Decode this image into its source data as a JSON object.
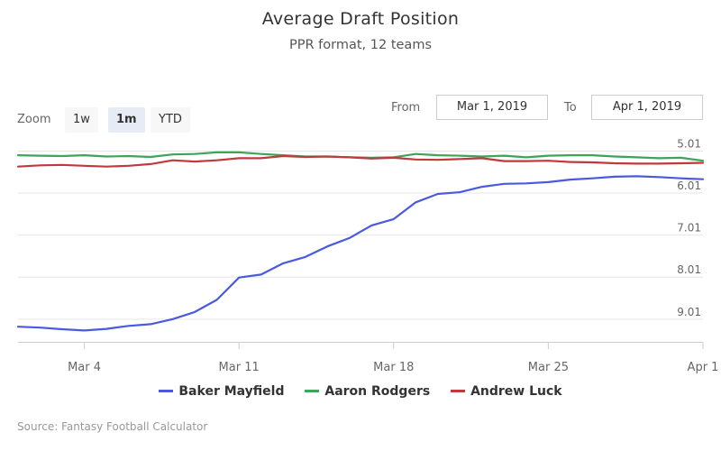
{
  "chart_data": {
    "type": "line",
    "title": "Average Draft Position",
    "subtitle": "PPR format, 12 teams",
    "xlabel": "",
    "ylabel": "",
    "x": [
      "2019-03-01",
      "2019-03-02",
      "2019-03-03",
      "2019-03-04",
      "2019-03-05",
      "2019-03-06",
      "2019-03-07",
      "2019-03-08",
      "2019-03-09",
      "2019-03-10",
      "2019-03-11",
      "2019-03-12",
      "2019-03-13",
      "2019-03-14",
      "2019-03-15",
      "2019-03-16",
      "2019-03-17",
      "2019-03-18",
      "2019-03-19",
      "2019-03-20",
      "2019-03-21",
      "2019-03-22",
      "2019-03-23",
      "2019-03-24",
      "2019-03-25",
      "2019-03-26",
      "2019-03-27",
      "2019-03-28",
      "2019-03-29",
      "2019-03-30",
      "2019-03-31",
      "2019-04-01"
    ],
    "x_tick_labels": [
      "Mar 4",
      "Mar 11",
      "Mar 18",
      "Mar 25",
      "Apr 1"
    ],
    "x_tick_indices": [
      3,
      10,
      17,
      24,
      31
    ],
    "y_tick_labels": [
      "5.01",
      "6.01",
      "7.01",
      "8.01",
      "9.01"
    ],
    "y_tick_values": [
      5.01,
      6.01,
      7.01,
      8.01,
      9.01
    ],
    "ylim": [
      4.85,
      9.55
    ],
    "y_reversed": true,
    "grid": true,
    "legend_position": "bottom-center",
    "series": [
      {
        "name": "Baker Mayfield",
        "color": "#4a5ae0",
        "values": [
          9.19,
          9.21,
          9.25,
          9.28,
          9.24,
          9.17,
          9.13,
          9.01,
          8.84,
          8.55,
          8.02,
          7.95,
          7.68,
          7.53,
          7.28,
          7.08,
          6.78,
          6.63,
          6.23,
          6.03,
          5.99,
          5.86,
          5.79,
          5.78,
          5.75,
          5.69,
          5.66,
          5.62,
          5.61,
          5.63,
          5.66,
          5.68
        ]
      },
      {
        "name": "Aaron Rodgers",
        "color": "#3fa35a",
        "values": [
          5.11,
          5.12,
          5.13,
          5.11,
          5.14,
          5.13,
          5.15,
          5.09,
          5.08,
          5.04,
          5.04,
          5.08,
          5.11,
          5.14,
          5.14,
          5.16,
          5.17,
          5.16,
          5.08,
          5.11,
          5.12,
          5.14,
          5.12,
          5.16,
          5.12,
          5.11,
          5.11,
          5.14,
          5.16,
          5.18,
          5.17,
          5.24
        ]
      },
      {
        "name": "Andrew Luck",
        "color": "#c0393b",
        "values": [
          5.38,
          5.35,
          5.34,
          5.36,
          5.38,
          5.36,
          5.32,
          5.23,
          5.26,
          5.23,
          5.18,
          5.18,
          5.13,
          5.15,
          5.14,
          5.16,
          5.19,
          5.17,
          5.21,
          5.22,
          5.2,
          5.18,
          5.25,
          5.25,
          5.24,
          5.27,
          5.28,
          5.3,
          5.31,
          5.31,
          5.3,
          5.29
        ]
      }
    ]
  },
  "range_selector": {
    "zoom_label": "Zoom",
    "buttons": [
      "1w",
      "1m",
      "YTD"
    ],
    "selected_button": "1m",
    "from_label": "From",
    "from_value": "Mar 1, 2019",
    "to_label": "To",
    "to_value": "Apr 1, 2019"
  },
  "credits": "Source: Fantasy Football Calculator"
}
